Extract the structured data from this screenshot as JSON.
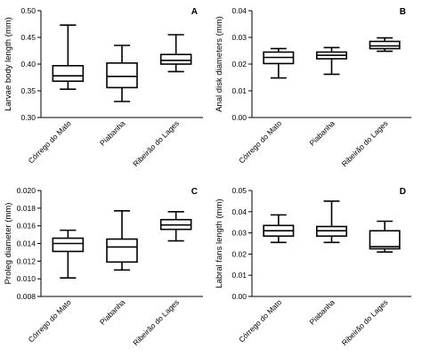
{
  "chart_data": [
    {
      "panel": "A",
      "type": "boxplot",
      "ylabel": "Larvae body length (mm)",
      "ylim": [
        0.3,
        0.5
      ],
      "yticks": [
        "0.30",
        "0.35",
        "0.40",
        "0.45",
        "0.50"
      ],
      "categories": [
        "Córrego do Mato",
        "Piabanha",
        "Ribeirão do Lages"
      ],
      "boxes": [
        {
          "min": 0.353,
          "q1": 0.368,
          "median": 0.378,
          "q3": 0.397,
          "max": 0.473
        },
        {
          "min": 0.33,
          "q1": 0.356,
          "median": 0.377,
          "q3": 0.402,
          "max": 0.435
        },
        {
          "min": 0.386,
          "q1": 0.4,
          "median": 0.407,
          "q3": 0.418,
          "max": 0.455
        }
      ]
    },
    {
      "panel": "B",
      "type": "boxplot",
      "ylabel": "Anal disk diameters (mm)",
      "ylim": [
        0.0,
        0.04
      ],
      "yticks": [
        "0.00",
        "0.01",
        "0.02",
        "0.03",
        "0.04"
      ],
      "categories": [
        "Córrego do Mato",
        "Piabanha",
        "Ribeirão do Lages"
      ],
      "boxes": [
        {
          "min": 0.0148,
          "q1": 0.0202,
          "median": 0.0225,
          "q3": 0.0245,
          "max": 0.0258
        },
        {
          "min": 0.0162,
          "q1": 0.022,
          "median": 0.0233,
          "q3": 0.0245,
          "max": 0.0262
        },
        {
          "min": 0.0248,
          "q1": 0.0258,
          "median": 0.0268,
          "q3": 0.0285,
          "max": 0.0298
        }
      ]
    },
    {
      "panel": "C",
      "type": "boxplot",
      "ylabel": "Proleg diameter (mm)",
      "ylim": [
        0.008,
        0.02
      ],
      "yticks": [
        "0.008",
        "0.010",
        "0.012",
        "0.014",
        "0.016",
        "0.018",
        "0.020"
      ],
      "categories": [
        "Córrego do Mato",
        "Piabanha",
        "Ribeirão do Lages"
      ],
      "boxes": [
        {
          "min": 0.0101,
          "q1": 0.0131,
          "median": 0.014,
          "q3": 0.0146,
          "max": 0.0155
        },
        {
          "min": 0.011,
          "q1": 0.0119,
          "median": 0.0136,
          "q3": 0.0145,
          "max": 0.0177
        },
        {
          "min": 0.0143,
          "q1": 0.0156,
          "median": 0.0161,
          "q3": 0.0167,
          "max": 0.0176
        }
      ]
    },
    {
      "panel": "D",
      "type": "boxplot",
      "ylabel": "Labral fans length (mm)",
      "ylim": [
        0.0,
        0.05
      ],
      "yticks": [
        "0.00",
        "0.01",
        "0.02",
        "0.03",
        "0.04",
        "0.05"
      ],
      "categories": [
        "Córrego do Mato",
        "Piabanha",
        "Ribeirão do Lages"
      ],
      "boxes": [
        {
          "min": 0.0255,
          "q1": 0.0285,
          "median": 0.031,
          "q3": 0.0335,
          "max": 0.0385
        },
        {
          "min": 0.0255,
          "q1": 0.0285,
          "median": 0.031,
          "q3": 0.033,
          "max": 0.045
        },
        {
          "min": 0.021,
          "q1": 0.0225,
          "median": 0.0235,
          "q3": 0.031,
          "max": 0.0355
        }
      ]
    }
  ]
}
